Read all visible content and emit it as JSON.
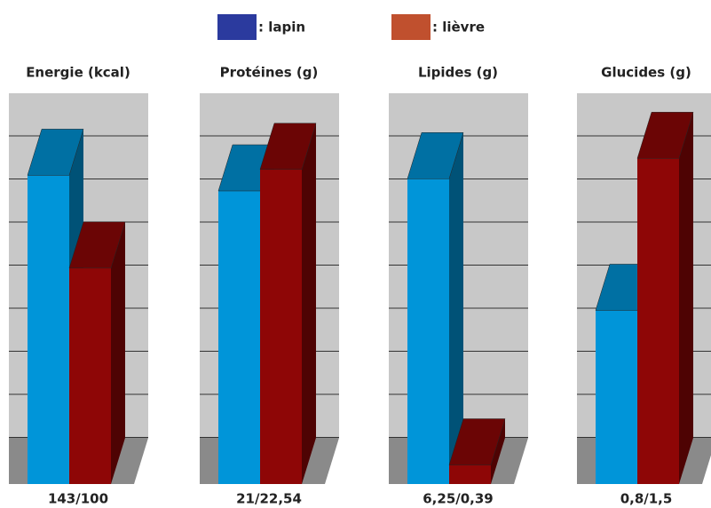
{
  "legend": [
    {
      "label": ": lapin",
      "color": "#2b3a9e"
    },
    {
      "label": ": lièvre",
      "color": "#c0502e"
    }
  ],
  "chart_data": [
    {
      "type": "bar3d",
      "title": "Energie (kcal)",
      "caption": "143/100",
      "values": [
        143,
        100
      ],
      "colors": [
        "#0095d9",
        "#8e0606"
      ],
      "ylim": [
        0,
        181
      ]
    },
    {
      "type": "bar3d",
      "title": "Protéines (g)",
      "caption": "21/22,54",
      "values": [
        21,
        22.54
      ],
      "colors": [
        "#0095d9",
        "#8e0606"
      ],
      "ylim": [
        0,
        28
      ]
    },
    {
      "type": "bar3d",
      "title": "Lipides (g)",
      "caption": "6,25/0,39",
      "values": [
        6.25,
        0.39
      ],
      "colors": [
        "#0095d9",
        "#8e0606"
      ],
      "ylim": [
        0,
        8
      ]
    },
    {
      "type": "bar3d",
      "title": "Glucides (g)",
      "caption": "0,8/1,5",
      "values": [
        0.8,
        1.5
      ],
      "colors": [
        "#0095d9",
        "#8e0606"
      ],
      "ylim": [
        0,
        1.8
      ]
    }
  ]
}
